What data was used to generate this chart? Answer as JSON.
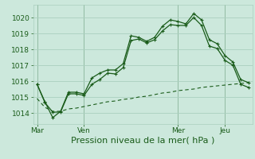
{
  "bg_color": "#cce8dc",
  "grid_color": "#aacfbf",
  "line_color": "#1a5c1a",
  "xlabel": "Pression niveau de la mer( hPa )",
  "xlabel_fontsize": 8,
  "tick_fontsize": 6.5,
  "ylim": [
    1013.3,
    1020.8
  ],
  "yticks": [
    1014,
    1015,
    1016,
    1017,
    1018,
    1019,
    1020
  ],
  "day_labels": [
    "Mar",
    "Ven",
    "Mer",
    "Jeu"
  ],
  "day_positions": [
    0,
    6,
    18,
    24
  ],
  "n_points": 28,
  "series1": [
    1015.8,
    1014.7,
    1013.7,
    1014.1,
    1015.3,
    1015.3,
    1015.2,
    1016.2,
    1016.5,
    1016.7,
    1016.7,
    1017.1,
    1018.85,
    1018.75,
    1018.5,
    1018.75,
    1019.45,
    1019.85,
    1019.75,
    1019.6,
    1020.25,
    1019.85,
    1018.6,
    1018.35,
    1017.6,
    1017.2,
    1016.1,
    1015.9
  ],
  "series2": [
    1015.8,
    1014.65,
    1014.05,
    1014.05,
    1015.2,
    1015.2,
    1015.1,
    1015.8,
    1016.1,
    1016.5,
    1016.45,
    1016.85,
    1018.55,
    1018.65,
    1018.4,
    1018.6,
    1019.15,
    1019.55,
    1019.5,
    1019.5,
    1020.0,
    1019.5,
    1018.2,
    1018.05,
    1017.3,
    1017.0,
    1015.8,
    1015.6
  ],
  "series3": [
    1014.9,
    1014.35,
    1014.1,
    1014.1,
    1014.25,
    1014.3,
    1014.4,
    1014.5,
    1014.6,
    1014.7,
    1014.75,
    1014.85,
    1014.9,
    1015.0,
    1015.05,
    1015.15,
    1015.25,
    1015.3,
    1015.4,
    1015.45,
    1015.5,
    1015.6,
    1015.65,
    1015.7,
    1015.75,
    1015.8,
    1015.85,
    1015.9
  ]
}
